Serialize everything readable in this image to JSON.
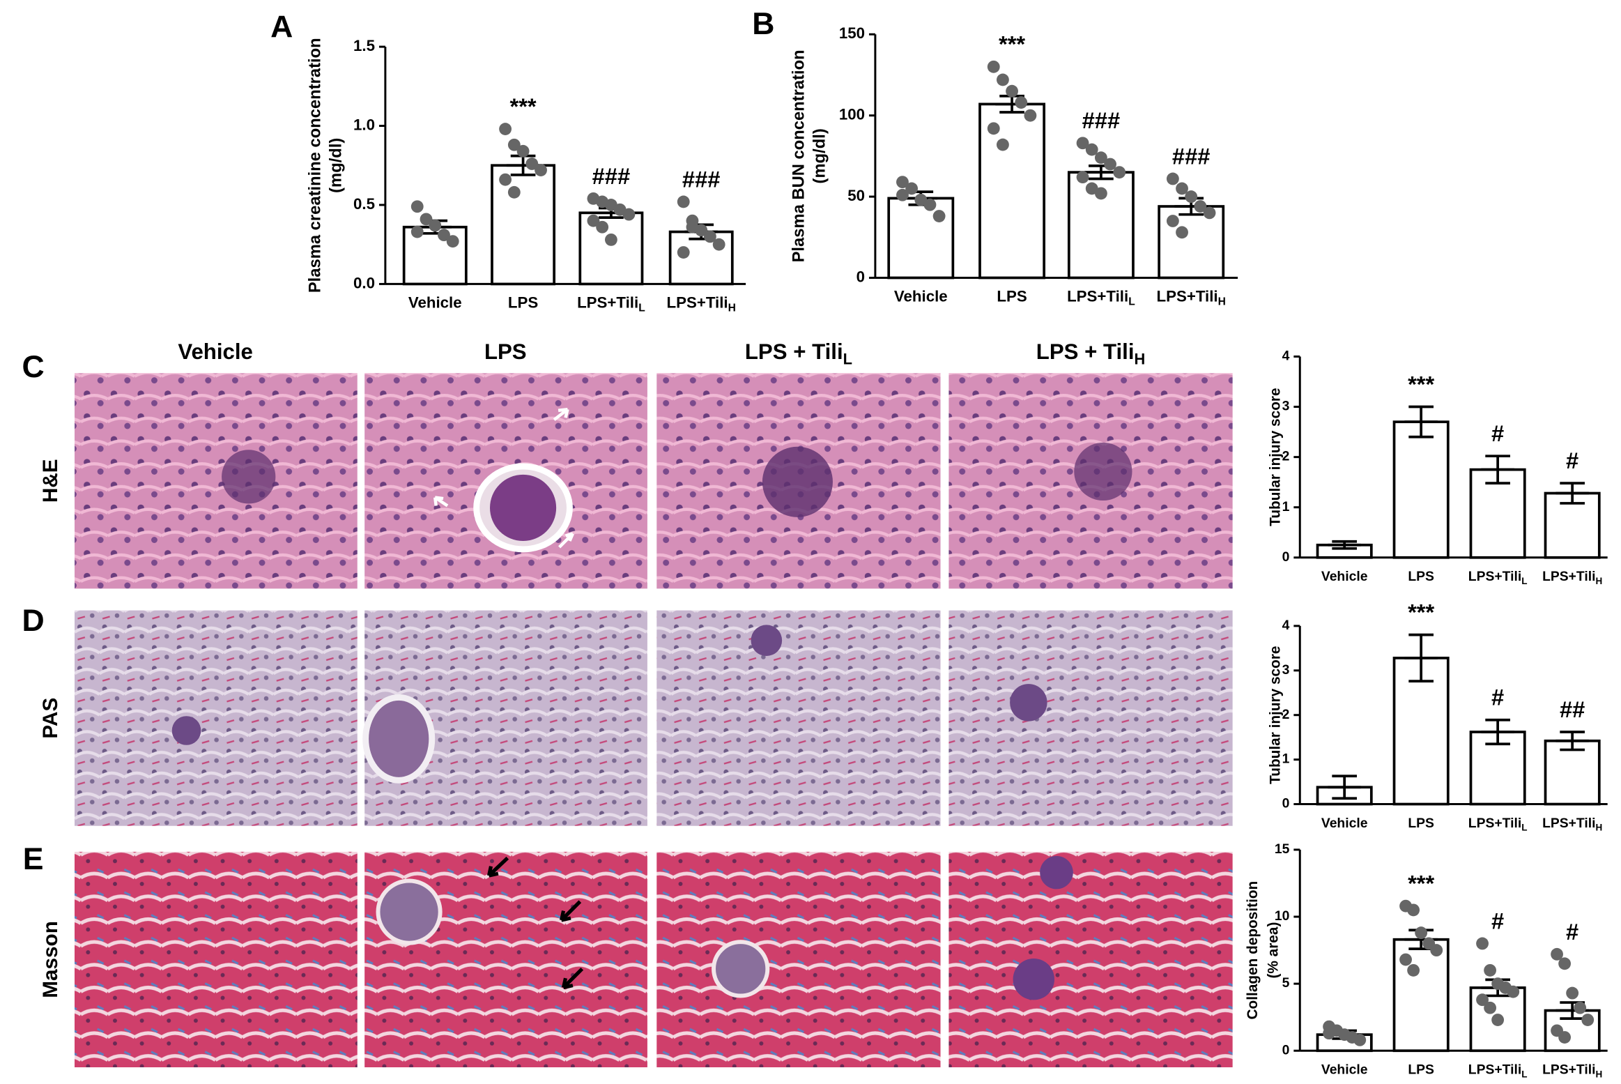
{
  "panel_letters": [
    "A",
    "B",
    "C",
    "D",
    "E"
  ],
  "column_headers": [
    "Vehicle",
    "LPS",
    "LPS + Tili",
    "LPS + Tili"
  ],
  "column_header_subscripts": [
    null,
    null,
    "L",
    "H"
  ],
  "row_labels": [
    "H&E",
    "PAS",
    "Masson"
  ],
  "chart_data": [
    {
      "type": "bar",
      "ylabel": [
        "Plasma creatinine concentration",
        "(mg/dl)"
      ],
      "categories": [
        "Vehicle",
        "LPS",
        "LPS+Tili",
        "LPS+Tili"
      ],
      "category_subscripts": [
        null,
        null,
        "L",
        "H"
      ],
      "values": [
        0.36,
        0.75,
        0.45,
        0.33
      ],
      "errors": [
        0.04,
        0.06,
        0.03,
        0.045
      ],
      "annotations": [
        null,
        "***",
        "###",
        "###"
      ],
      "points": [
        [
          0.49,
          0.41,
          0.37,
          0.31,
          0.27,
          0.33
        ],
        [
          0.98,
          0.88,
          0.84,
          0.76,
          0.72,
          0.66,
          0.58
        ],
        [
          0.54,
          0.52,
          0.5,
          0.47,
          0.44,
          0.4,
          0.36,
          0.28
        ],
        [
          0.52,
          0.4,
          0.34,
          0.3,
          0.25,
          0.2,
          0.36
        ]
      ],
      "ylim": [
        0,
        1.5
      ],
      "yticks": [
        {
          "value": 0,
          "label": "0.0"
        },
        0.5,
        {
          "value": 1,
          "label": "1.0"
        },
        1.5
      ],
      "color": "#ffffff",
      "point_color": "#666666"
    },
    {
      "type": "bar",
      "ylabel": [
        "Plasma BUN concentration",
        "(mg/dl)"
      ],
      "categories": [
        "Vehicle",
        "LPS",
        "LPS+Tili",
        "LPS+Tili"
      ],
      "category_subscripts": [
        null,
        null,
        "L",
        "H"
      ],
      "values": [
        49,
        107,
        65,
        44
      ],
      "errors": [
        4,
        5,
        4,
        5
      ],
      "annotations": [
        null,
        "***",
        "###",
        "###"
      ],
      "points": [
        [
          59,
          55,
          48,
          45,
          38,
          51
        ],
        [
          130,
          122,
          115,
          108,
          100,
          92,
          82
        ],
        [
          83,
          79,
          74,
          70,
          65,
          62,
          55,
          52
        ],
        [
          61,
          55,
          50,
          44,
          40,
          35,
          28
        ]
      ],
      "ylim": [
        0,
        150
      ],
      "yticks": [
        0,
        50,
        100,
        150
      ],
      "color": "#ffffff",
      "point_color": "#666666"
    },
    {
      "type": "bar",
      "ylabel": [
        "Tubular injury score"
      ],
      "categories": [
        "Vehicle",
        "LPS",
        "LPS+Tili",
        "LPS+Tili"
      ],
      "category_subscripts": [
        null,
        null,
        "L",
        "H"
      ],
      "values": [
        0.25,
        2.7,
        1.75,
        1.28
      ],
      "errors": [
        0.07,
        0.3,
        0.27,
        0.2
      ],
      "annotations": [
        null,
        "***",
        "#",
        "#"
      ],
      "ylim": [
        0,
        4
      ],
      "yticks": [
        0,
        1,
        2,
        3,
        4
      ],
      "color": "#ffffff"
    },
    {
      "type": "bar",
      "ylabel": [
        "Tubular injury score"
      ],
      "categories": [
        "Vehicle",
        "LPS",
        "LPS+Tili",
        "LPS+Tili"
      ],
      "category_subscripts": [
        null,
        null,
        "L",
        "H"
      ],
      "values": [
        0.38,
        3.28,
        1.62,
        1.42
      ],
      "errors": [
        0.25,
        0.52,
        0.27,
        0.2
      ],
      "annotations": [
        null,
        "***",
        "#",
        "##"
      ],
      "ylim": [
        0,
        4
      ],
      "yticks": [
        0,
        1,
        2,
        3,
        4
      ],
      "color": "#ffffff"
    },
    {
      "type": "bar",
      "ylabel": [
        "Collagen deposition",
        "(% area)"
      ],
      "categories": [
        "Vehicle",
        "LPS",
        "LPS+Tili",
        "LPS+Tili"
      ],
      "category_subscripts": [
        null,
        null,
        "L",
        "H"
      ],
      "values": [
        1.2,
        8.3,
        4.7,
        3.0
      ],
      "errors": [
        0.3,
        0.7,
        0.6,
        0.6
      ],
      "annotations": [
        null,
        "***",
        "#",
        "#"
      ],
      "points": [
        [
          1.8,
          1.5,
          1.2,
          1.0,
          0.8,
          1.3
        ],
        [
          10.8,
          10.5,
          8.8,
          8.0,
          7.5,
          6.8,
          6.0
        ],
        [
          8.0,
          6.0,
          5.0,
          4.7,
          4.4,
          3.8,
          3.2,
          2.3
        ],
        [
          7.2,
          6.5,
          4.3,
          3.2,
          2.3,
          1.5,
          1.0
        ]
      ],
      "ylim": [
        0,
        15
      ],
      "yticks": [
        0,
        5,
        10,
        15
      ],
      "color": "#ffffff",
      "point_color": "#666666"
    }
  ]
}
